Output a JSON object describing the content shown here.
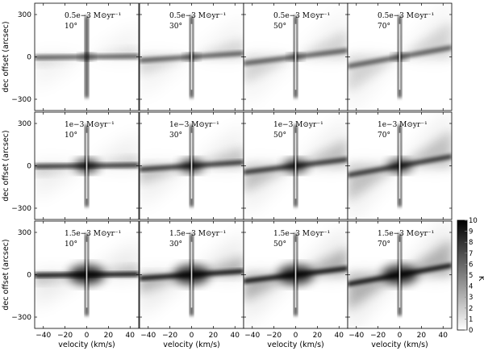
{
  "chart_data": {
    "type": "heatmap",
    "xlabel": "velocity (km/s)",
    "ylabel": "dec offset (arcsec)",
    "xlim": [
      -48,
      48
    ],
    "ylim": [
      -380,
      380
    ],
    "x_ticks": [
      -40,
      -20,
      0,
      20,
      40
    ],
    "y_ticks": [
      300,
      0,
      -300
    ],
    "colorbar": {
      "label": "K",
      "range": [
        0,
        10
      ],
      "ticks": [
        0,
        1,
        2,
        3,
        4,
        5,
        6,
        7,
        8,
        9,
        10
      ],
      "colormap": "white-to-black"
    },
    "grid": false,
    "rows": [
      {
        "rate_label": "0.5e−3 M⊙yr⁻¹",
        "panels": [
          {
            "inclination_label": "10°",
            "inclination": 10
          },
          {
            "inclination_label": "30°",
            "inclination": 30
          },
          {
            "inclination_label": "50°",
            "inclination": 50
          },
          {
            "inclination_label": "70°",
            "inclination": 70
          }
        ]
      },
      {
        "rate_label": "1e−3 M⊙yr⁻¹",
        "panels": [
          {
            "inclination_label": "10°",
            "inclination": 10
          },
          {
            "inclination_label": "30°",
            "inclination": 30
          },
          {
            "inclination_label": "50°",
            "inclination": 50
          },
          {
            "inclination_label": "70°",
            "inclination": 70
          }
        ]
      },
      {
        "rate_label": "1.5e−3 M⊙yr⁻¹",
        "panels": [
          {
            "inclination_label": "10°",
            "inclination": 10
          },
          {
            "inclination_label": "30°",
            "inclination": 30
          },
          {
            "inclination_label": "50°",
            "inclination": 50
          },
          {
            "inclination_label": "70°",
            "inclination": 70
          }
        ]
      }
    ]
  }
}
